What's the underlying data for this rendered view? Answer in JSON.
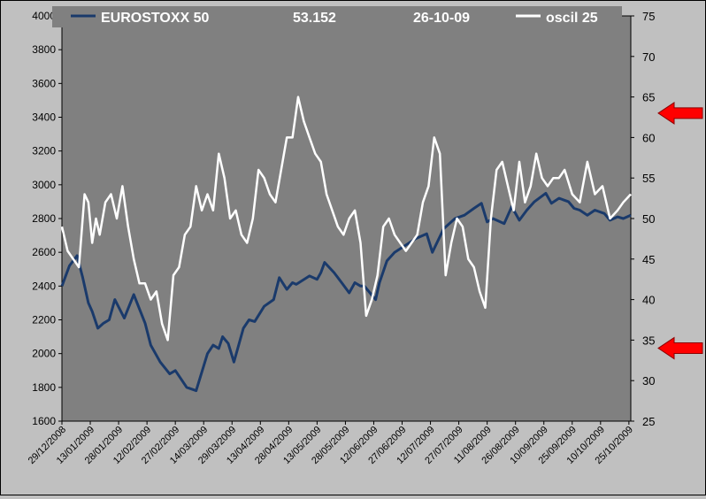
{
  "chart_data": {
    "type": "line",
    "header": {
      "series1_name": "EUROSTOXX 50",
      "value": "53.152",
      "date": "26-10-09",
      "series2_name": "oscil 25"
    },
    "colors": {
      "background": "#c0c0c0",
      "plot": "#808080",
      "series1": "#1a3a6b",
      "series2": "#ffffff",
      "arrow": "#ff0000"
    },
    "y_left": {
      "min": 1600,
      "max": 4000,
      "ticks": [
        "1600",
        "1800",
        "2000",
        "2200",
        "2400",
        "2600",
        "2800",
        "3000",
        "3200",
        "3400",
        "3600",
        "3800",
        "4000"
      ]
    },
    "y_right": {
      "min": 25,
      "max": 75,
      "ticks": [
        "25",
        "30",
        "35",
        "40",
        "45",
        "50",
        "55",
        "60",
        "65",
        "70",
        "75"
      ]
    },
    "x_ticks": [
      "29/12/2008",
      "13/01/2009",
      "28/01/2009",
      "12/02/2009",
      "27/02/2009",
      "14/03/2009",
      "29/03/2009",
      "13/04/2009",
      "28/04/2009",
      "13/05/2009",
      "28/05/2009",
      "12/06/2009",
      "27/06/2009",
      "12/07/2009",
      "27/07/2009",
      "11/08/2009",
      "26/08/2009",
      "10/09/2009",
      "25/09/2009",
      "10/10/2009",
      "25/10/2009"
    ],
    "x_range_days": [
      0,
      301
    ],
    "arrows_at_right_values": [
      63,
      34
    ],
    "series": [
      {
        "name": "EUROSTOXX 50",
        "axis": "left",
        "x": [
          0,
          4,
          8,
          11,
          14,
          16,
          19,
          22,
          25,
          28,
          33,
          38,
          44,
          47,
          52,
          57,
          60,
          66,
          71,
          77,
          80,
          83,
          85,
          88,
          91,
          93,
          96,
          99,
          102,
          107,
          112,
          115,
          119,
          122,
          124,
          131,
          135,
          137,
          139,
          144,
          148,
          152,
          155,
          158,
          160,
          163,
          166,
          168,
          172,
          176,
          183,
          187,
          193,
          196,
          202,
          208,
          213,
          218,
          222,
          225,
          228,
          234,
          238,
          242,
          246,
          250,
          256,
          259,
          263,
          268,
          271,
          274,
          278,
          282,
          287,
          290,
          294,
          297,
          301
        ],
        "values": [
          2400,
          2520,
          2580,
          2450,
          2300,
          2250,
          2150,
          2180,
          2200,
          2320,
          2210,
          2350,
          2180,
          2050,
          1950,
          1880,
          1900,
          1800,
          1780,
          2000,
          2050,
          2030,
          2100,
          2060,
          1950,
          2030,
          2150,
          2200,
          2190,
          2280,
          2320,
          2450,
          2380,
          2420,
          2410,
          2460,
          2440,
          2480,
          2540,
          2480,
          2420,
          2360,
          2420,
          2400,
          2400,
          2360,
          2320,
          2420,
          2550,
          2600,
          2650,
          2680,
          2710,
          2600,
          2740,
          2800,
          2820,
          2860,
          2890,
          2780,
          2800,
          2770,
          2870,
          2790,
          2850,
          2900,
          2950,
          2890,
          2920,
          2900,
          2860,
          2850,
          2820,
          2850,
          2830,
          2790,
          2810,
          2800,
          2820
        ]
      },
      {
        "name": "oscil 25",
        "axis": "right",
        "x": [
          0,
          3,
          6,
          9,
          12,
          14,
          16,
          18,
          20,
          23,
          26,
          29,
          32,
          35,
          38,
          41,
          44,
          47,
          50,
          53,
          56,
          59,
          62,
          65,
          68,
          71,
          74,
          77,
          80,
          83,
          86,
          89,
          92,
          95,
          98,
          101,
          104,
          107,
          110,
          113,
          116,
          119,
          122,
          125,
          128,
          131,
          134,
          137,
          140,
          143,
          146,
          149,
          152,
          155,
          158,
          161,
          164,
          167,
          170,
          173,
          176,
          179,
          182,
          185,
          188,
          191,
          194,
          197,
          200,
          203,
          206,
          209,
          212,
          215,
          218,
          221,
          224,
          227,
          230,
          233,
          236,
          239,
          242,
          245,
          248,
          251,
          254,
          257,
          260,
          263,
          266,
          270,
          274,
          278,
          282,
          286,
          290,
          294,
          297,
          301
        ],
        "values": [
          49,
          46,
          45,
          44,
          53,
          52,
          47,
          50,
          48,
          52,
          53,
          50,
          54,
          49,
          45,
          42,
          42,
          40,
          41,
          37,
          35,
          43,
          44,
          48,
          49,
          54,
          51,
          53,
          51,
          58,
          55,
          50,
          51,
          48,
          47,
          50,
          56,
          55,
          53,
          52,
          56,
          60,
          60,
          65,
          62,
          60,
          58,
          57,
          53,
          51,
          49,
          48,
          50,
          51,
          47,
          38,
          40,
          43,
          49,
          50,
          48,
          47,
          46,
          47,
          48,
          52,
          54,
          60,
          58,
          43,
          47,
          50,
          49,
          45,
          44,
          41,
          39,
          50,
          56,
          57,
          54,
          51,
          57,
          52,
          54,
          58,
          55,
          54,
          55,
          55,
          56,
          53,
          52,
          57,
          53,
          54,
          50,
          51,
          52,
          53
        ]
      }
    ]
  }
}
